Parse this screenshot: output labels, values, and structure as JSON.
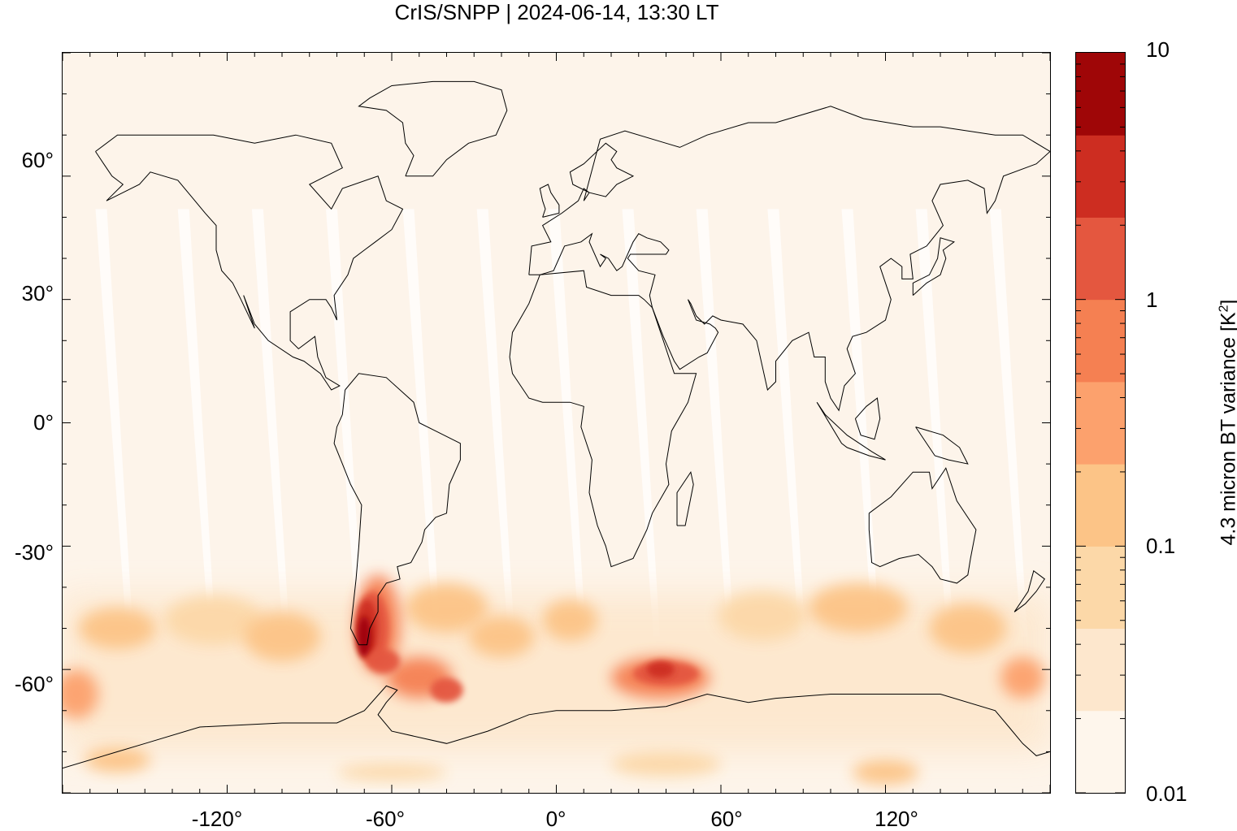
{
  "title": "CrIS/SNPP | 2024-06-14, 13:30 LT",
  "y_axis": {
    "ticks": [
      "60°",
      "30°",
      "0°",
      "-30°",
      "-60°"
    ]
  },
  "x_axis": {
    "ticks": [
      "-120°",
      "-60°",
      "0°",
      "60°",
      "120°"
    ]
  },
  "colorbar": {
    "label_main": "4.3 micron BT variance [K",
    "label_sup": "2",
    "label_end": "]",
    "tick_labels": [
      "10",
      "1",
      "0.1",
      "0.01"
    ],
    "scale": "log",
    "range": [
      0.01,
      10
    ],
    "level_colors": [
      "#fef6ec",
      "#fde7cd",
      "#fcd8a8",
      "#fcc487",
      "#fca16d",
      "#f58052",
      "#e4573f",
      "#cd2d21",
      "#9f0607"
    ]
  },
  "chart_data": {
    "type": "heatmap",
    "title": "CrIS/SNPP | 2024-06-14, 13:30 LT",
    "x_range": [
      -180,
      180
    ],
    "y_range": [
      -90,
      90
    ],
    "x_ticks": [
      -120,
      -60,
      0,
      60,
      120
    ],
    "y_ticks": [
      60,
      30,
      0,
      -30,
      -60
    ],
    "color_scale": "log",
    "color_range": [
      0.01,
      10
    ],
    "colorbar_label": "4.3 micron BT variance [K^2]",
    "features": [
      {
        "region": "southern Andes / Patagonia",
        "lon_range": [
          -75,
          -60
        ],
        "lat_range": [
          -55,
          -40
        ],
        "max_value": 10
      },
      {
        "region": "Drake Passage / Scotia Sea",
        "lon_range": [
          -65,
          -35
        ],
        "lat_range": [
          -65,
          -55
        ],
        "max_value": 3
      },
      {
        "region": "Southern Ocean south of Africa",
        "lon_range": [
          20,
          55
        ],
        "lat_range": [
          -68,
          -58
        ],
        "max_value": 3
      },
      {
        "region": "Southern Hemisphere mid-latitudes",
        "lon_range": [
          -180,
          180
        ],
        "lat_range": [
          -75,
          -40
        ],
        "max_value": 0.3
      },
      {
        "region": "Tropics and Northern Hemisphere",
        "lon_range": [
          -180,
          180
        ],
        "lat_range": [
          -35,
          90
        ],
        "max_value": 0.02
      }
    ]
  }
}
